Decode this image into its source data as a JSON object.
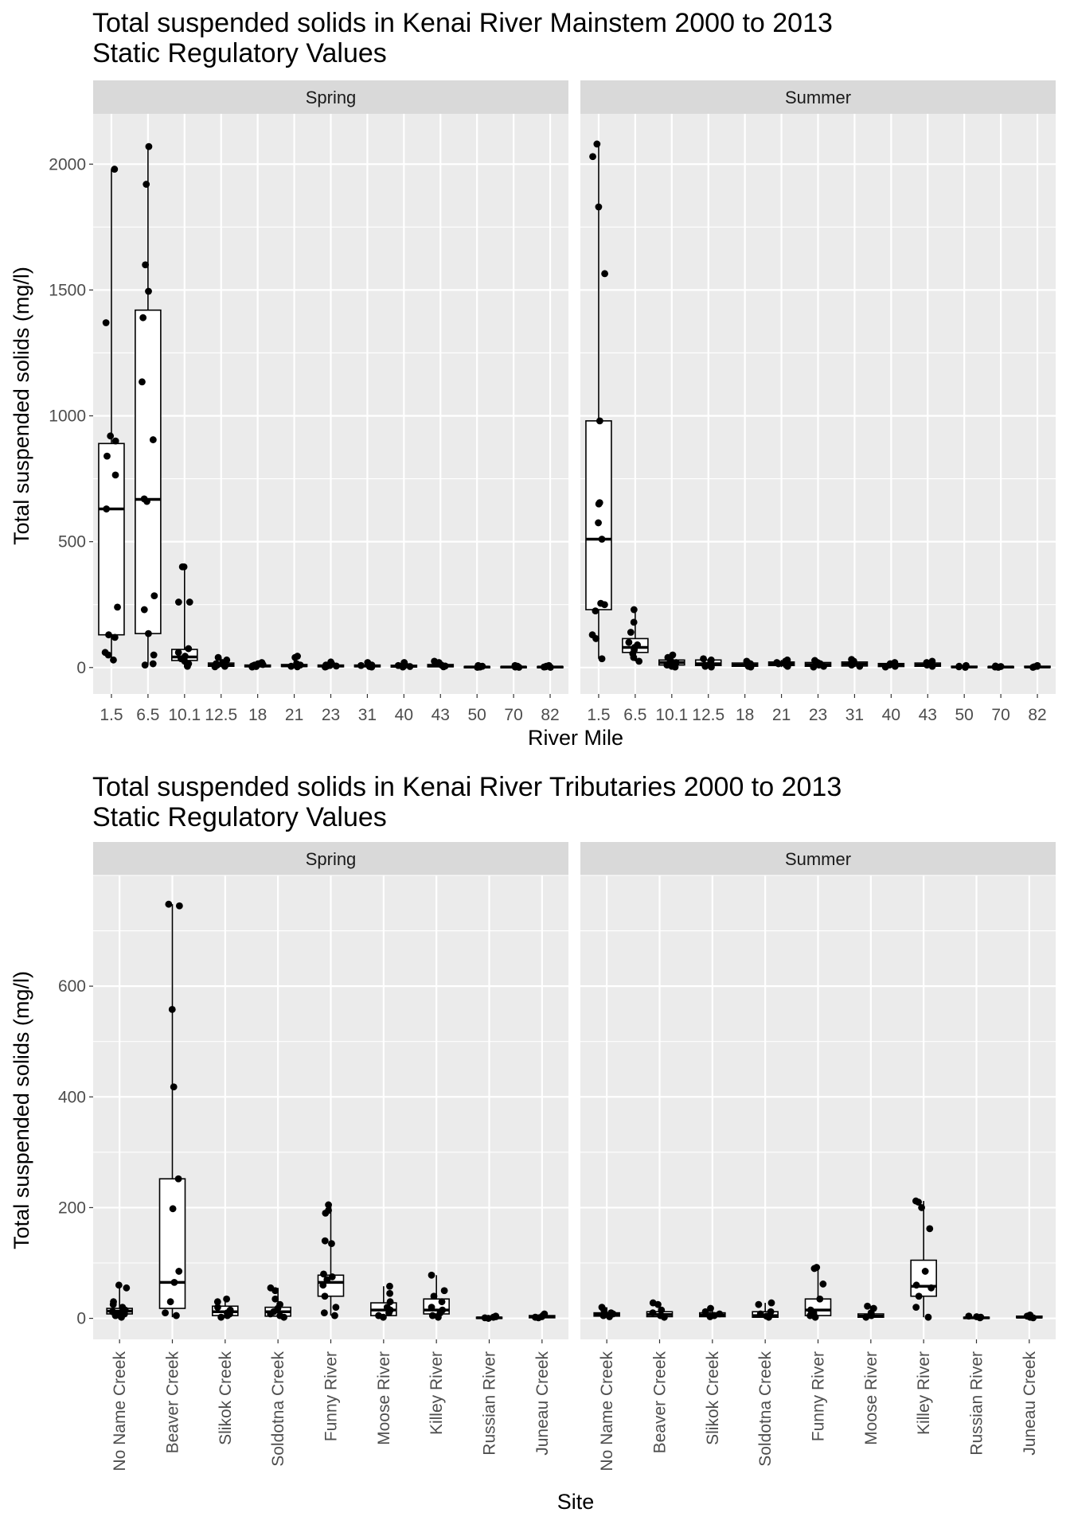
{
  "chart_data": [
    {
      "type": "boxplot",
      "title": "Total suspended solids in Kenai River Mainstem  2000 to 2013",
      "subtitle": "Static Regulatory Values",
      "xlabel": "River Mile",
      "ylabel": "Total suspended solids (mg/l)",
      "ylim": [
        -105,
        2200
      ],
      "yticks": [
        0,
        500,
        1000,
        1500,
        2000
      ],
      "categories": [
        "1.5",
        "6.5",
        "10.1",
        "12.5",
        "18",
        "21",
        "23",
        "31",
        "40",
        "43",
        "50",
        "70",
        "82"
      ],
      "panels": [
        {
          "name": "Spring",
          "boxes": [
            {
              "q1": 130,
              "median": 630,
              "q3": 890,
              "min": 30,
              "max": 1980
            },
            {
              "q1": 135,
              "median": 668,
              "q3": 1420,
              "min": 10,
              "max": 2070
            },
            {
              "q1": 28,
              "median": 42,
              "q3": 72,
              "min": 3,
              "max": 400
            },
            {
              "q1": 5,
              "median": 10,
              "q3": 18,
              "min": 2,
              "max": 40
            },
            {
              "q1": 3,
              "median": 6,
              "q3": 10,
              "min": 1,
              "max": 20
            },
            {
              "q1": 4,
              "median": 7,
              "q3": 12,
              "min": 1,
              "max": 45
            },
            {
              "q1": 3,
              "median": 6,
              "q3": 10,
              "min": 1,
              "max": 22
            },
            {
              "q1": 3,
              "median": 6,
              "q3": 10,
              "min": 1,
              "max": 20
            },
            {
              "q1": 2,
              "median": 5,
              "q3": 9,
              "min": 1,
              "max": 20
            },
            {
              "q1": 3,
              "median": 6,
              "q3": 12,
              "min": 1,
              "max": 25
            },
            {
              "q1": 1,
              "median": 2,
              "q3": 4,
              "min": 0,
              "max": 8
            },
            {
              "q1": 1,
              "median": 2,
              "q3": 4,
              "min": 0,
              "max": 8
            },
            {
              "q1": 1,
              "median": 2,
              "q3": 4,
              "min": 0,
              "max": 8
            }
          ],
          "points": [
            [
              1980,
              1370,
              920,
              900,
              840,
              765,
              630,
              240,
              130,
              120,
              60,
              50,
              30
            ],
            [
              2070,
              1920,
              1600,
              1495,
              1390,
              1135,
              905,
              670,
              660,
              285,
              230,
              135,
              50,
              15,
              10
            ],
            [
              400,
              400,
              260,
              260,
              75,
              60,
              45,
              35,
              25,
              15,
              5
            ],
            [
              40,
              30,
              20,
              15,
              10,
              8,
              5,
              3
            ],
            [
              20,
              15,
              12,
              10,
              8,
              6,
              4,
              2
            ],
            [
              45,
              40,
              15,
              10,
              8,
              5,
              3
            ],
            [
              22,
              15,
              10,
              8,
              6,
              4,
              2
            ],
            [
              20,
              15,
              10,
              8,
              6,
              4,
              2
            ],
            [
              20,
              12,
              8,
              6,
              4,
              2
            ],
            [
              25,
              20,
              15,
              10,
              6,
              3
            ],
            [
              8,
              5,
              3,
              2,
              1
            ],
            [
              8,
              5,
              3,
              2,
              1
            ],
            [
              8,
              5,
              3,
              2,
              1
            ]
          ]
        },
        {
          "name": "Summer",
          "boxes": [
            {
              "q1": 230,
              "median": 510,
              "q3": 980,
              "min": 35,
              "max": 2080
            },
            {
              "q1": 60,
              "median": 80,
              "q3": 115,
              "min": 25,
              "max": 230
            },
            {
              "q1": 10,
              "median": 20,
              "q3": 30,
              "min": 2,
              "max": 50
            },
            {
              "q1": 8,
              "median": 15,
              "q3": 30,
              "min": 2,
              "max": 35
            },
            {
              "q1": 5,
              "median": 10,
              "q3": 18,
              "min": 2,
              "max": 25
            },
            {
              "q1": 8,
              "median": 15,
              "q3": 22,
              "min": 2,
              "max": 30
            },
            {
              "q1": 5,
              "median": 12,
              "q3": 20,
              "min": 2,
              "max": 28
            },
            {
              "q1": 6,
              "median": 14,
              "q3": 22,
              "min": 2,
              "max": 32
            },
            {
              "q1": 4,
              "median": 10,
              "q3": 16,
              "min": 1,
              "max": 20
            },
            {
              "q1": 5,
              "median": 10,
              "q3": 18,
              "min": 1,
              "max": 25
            },
            {
              "q1": 1,
              "median": 2,
              "q3": 5,
              "min": 0,
              "max": 8
            },
            {
              "q1": 1,
              "median": 2,
              "q3": 4,
              "min": 0,
              "max": 6
            },
            {
              "q1": 1,
              "median": 2,
              "q3": 5,
              "min": 0,
              "max": 8
            }
          ],
          "points": [
            [
              2080,
              2030,
              1830,
              1565,
              980,
              655,
              650,
              575,
              510,
              255,
              250,
              225,
              130,
              115,
              35
            ],
            [
              230,
              180,
              140,
              100,
              90,
              80,
              70,
              55,
              40,
              25
            ],
            [
              50,
              40,
              30,
              20,
              15,
              10,
              5,
              2
            ],
            [
              35,
              30,
              25,
              15,
              10,
              5,
              2
            ],
            [
              25,
              20,
              15,
              10,
              5,
              2
            ],
            [
              30,
              25,
              20,
              15,
              10,
              5
            ],
            [
              28,
              20,
              15,
              10,
              5,
              2
            ],
            [
              32,
              25,
              20,
              15,
              10,
              5
            ],
            [
              20,
              15,
              10,
              5,
              2
            ],
            [
              25,
              20,
              15,
              10,
              5
            ],
            [
              8,
              5,
              3,
              1
            ],
            [
              6,
              4,
              2,
              1
            ],
            [
              8,
              5,
              3,
              1
            ]
          ]
        }
      ]
    },
    {
      "type": "boxplot",
      "title": "Total suspended solids in Kenai River Tributaries  2000 to 2013",
      "subtitle": "Static Regulatory Values",
      "xlabel": "Site",
      "ylabel": "Total suspended solids (mg/l)",
      "ylim": [
        -38,
        800
      ],
      "yticks": [
        0,
        200,
        400,
        600
      ],
      "categories": [
        "No Name Creek",
        "Beaver Creek",
        "Slikok Creek",
        "Soldotna Creek",
        "Funny River",
        "Moose River",
        "Killey River",
        "Russian River",
        "Juneau Creek"
      ],
      "panels": [
        {
          "name": "Spring",
          "boxes": [
            {
              "q1": 8,
              "median": 13,
              "q3": 18,
              "min": 2,
              "max": 60
            },
            {
              "q1": 18,
              "median": 65,
              "q3": 252,
              "min": 2,
              "max": 748
            },
            {
              "q1": 5,
              "median": 12,
              "q3": 22,
              "min": 1,
              "max": 35
            },
            {
              "q1": 4,
              "median": 12,
              "q3": 20,
              "min": 1,
              "max": 55
            },
            {
              "q1": 40,
              "median": 65,
              "q3": 78,
              "min": 5,
              "max": 205
            },
            {
              "q1": 5,
              "median": 15,
              "q3": 28,
              "min": 1,
              "max": 58
            },
            {
              "q1": 8,
              "median": 15,
              "q3": 35,
              "min": 1,
              "max": 78
            },
            {
              "q1": 0,
              "median": 1,
              "q3": 2,
              "min": 0,
              "max": 4
            },
            {
              "q1": 1,
              "median": 3,
              "q3": 5,
              "min": 0,
              "max": 8
            }
          ],
          "points": [
            [
              60,
              55,
              30,
              25,
              20,
              15,
              12,
              10,
              8,
              5,
              3,
              2
            ],
            [
              748,
              745,
              558,
              418,
              252,
              198,
              85,
              65,
              30,
              10,
              5
            ],
            [
              35,
              30,
              20,
              15,
              10,
              8,
              5,
              2
            ],
            [
              55,
              50,
              35,
              25,
              18,
              12,
              8,
              5,
              2
            ],
            [
              205,
              195,
              190,
              140,
              135,
              80,
              75,
              70,
              60,
              40,
              20,
              10,
              5
            ],
            [
              58,
              45,
              30,
              20,
              15,
              10,
              5,
              2
            ],
            [
              78,
              50,
              40,
              30,
              20,
              15,
              10,
              5,
              2
            ],
            [
              4,
              3,
              2,
              1,
              0
            ],
            [
              8,
              5,
              3,
              2,
              1
            ]
          ]
        },
        {
          "name": "Summer",
          "boxes": [
            {
              "q1": 4,
              "median": 7,
              "q3": 10,
              "min": 1,
              "max": 20
            },
            {
              "q1": 3,
              "median": 7,
              "q3": 12,
              "min": 1,
              "max": 28
            },
            {
              "q1": 3,
              "median": 6,
              "q3": 10,
              "min": 1,
              "max": 18
            },
            {
              "q1": 2,
              "median": 5,
              "q3": 12,
              "min": 1,
              "max": 28
            },
            {
              "q1": 5,
              "median": 15,
              "q3": 35,
              "min": 1,
              "max": 92
            },
            {
              "q1": 2,
              "median": 4,
              "q3": 8,
              "min": 1,
              "max": 22
            },
            {
              "q1": 40,
              "median": 58,
              "q3": 105,
              "min": 2,
              "max": 212
            },
            {
              "q1": 0,
              "median": 1,
              "q3": 2,
              "min": 0,
              "max": 4
            },
            {
              "q1": 1,
              "median": 2,
              "q3": 4,
              "min": 0,
              "max": 6
            }
          ],
          "points": [
            [
              20,
              15,
              10,
              8,
              5,
              3
            ],
            [
              28,
              25,
              15,
              10,
              5,
              2
            ],
            [
              18,
              12,
              8,
              5,
              3
            ],
            [
              28,
              25,
              12,
              8,
              4,
              2
            ],
            [
              92,
              90,
              62,
              35,
              15,
              10,
              5,
              2
            ],
            [
              22,
              18,
              10,
              5,
              2
            ],
            [
              212,
              210,
              200,
              162,
              85,
              60,
              55,
              40,
              20,
              2
            ],
            [
              4,
              3,
              2,
              1
            ],
            [
              6,
              4,
              2,
              1
            ]
          ]
        }
      ]
    }
  ]
}
